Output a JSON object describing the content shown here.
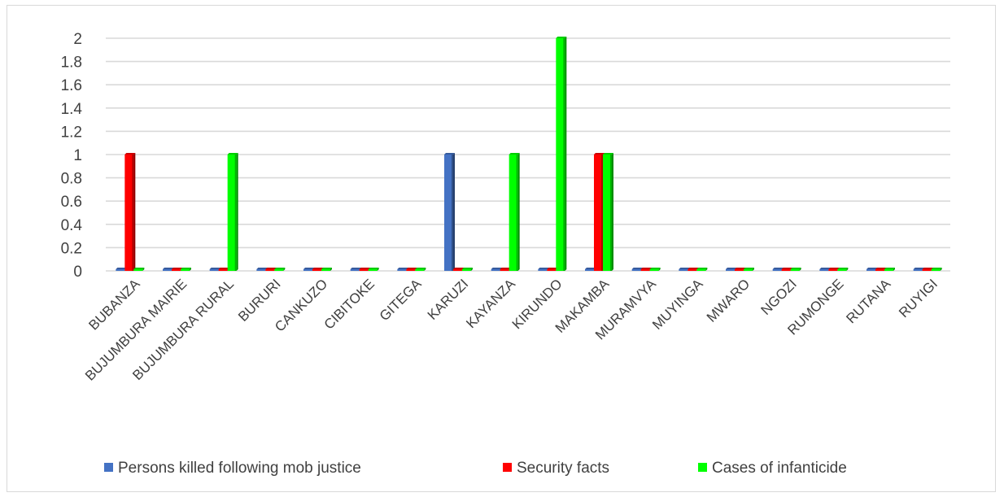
{
  "chart_data": {
    "type": "bar",
    "title": "",
    "xlabel": "",
    "ylabel": "",
    "ylim": [
      0,
      2
    ],
    "yticks": [
      0,
      0.2,
      0.4,
      0.6,
      0.8,
      1,
      1.2,
      1.4,
      1.6,
      1.8,
      2
    ],
    "grid": true,
    "legend_position": "bottom",
    "categories": [
      "BUBANZA",
      "BUJUMBURA MAIRIE",
      "BUJUMBURA RURAL",
      "BURURI",
      "CANKUZO",
      "CIBITOKE",
      "GITEGA",
      "KARUZI",
      "KAYANZA",
      "KIRUNDO",
      "MAKAMBA",
      "MURAMVYA",
      "MUYINGA",
      "MWARO",
      "NGOZI",
      "RUMONGE",
      "RUTANA",
      "RUYIGI"
    ],
    "series": [
      {
        "name": "Persons killed following mob justice",
        "color": "#4472c4",
        "values": [
          0,
          0,
          0,
          0,
          0,
          0,
          0,
          1,
          0,
          0,
          0,
          0,
          0,
          0,
          0,
          0,
          0,
          0
        ]
      },
      {
        "name": "Security facts",
        "color": "#ff0000",
        "values": [
          1,
          0,
          0,
          0,
          0,
          0,
          0,
          0,
          0,
          0,
          1,
          0,
          0,
          0,
          0,
          0,
          0,
          0
        ]
      },
      {
        "name": "Cases of infanticide",
        "color": "#00ff00",
        "values": [
          0,
          0,
          1,
          0,
          0,
          0,
          0,
          0,
          1,
          2,
          1,
          0,
          0,
          0,
          0,
          0,
          0,
          0
        ]
      }
    ]
  }
}
